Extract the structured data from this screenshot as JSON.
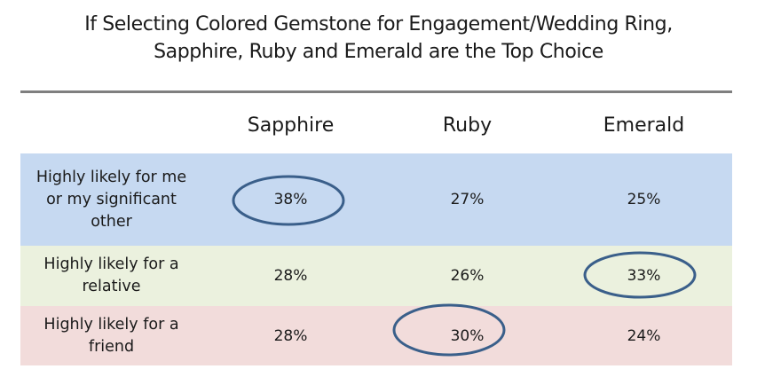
{
  "title_line1": "If Selecting Colored Gemstone for Engagement/Wedding Ring,",
  "title_line2": "Sapphire, Ruby and Emerald are the Top Choice",
  "colors": {
    "row0": "#c6d9f1",
    "row1": "#ebf1de",
    "row2": "#f2dcdb",
    "highlight": "#3a5f8a"
  },
  "chart_data": {
    "type": "table",
    "title": "If Selecting Colored Gemstone for Engagement/Wedding Ring, Sapphire, Ruby and Emerald are the Top Choice",
    "columns": [
      "Sapphire",
      "Ruby",
      "Emerald"
    ],
    "rows": [
      {
        "label": "Highly likely for me or my significant other",
        "values": [
          "38%",
          "27%",
          "25%"
        ],
        "highlight": 0
      },
      {
        "label": "Highly likely for a relative",
        "values": [
          "28%",
          "26%",
          "33%"
        ],
        "highlight": 2
      },
      {
        "label": "Highly likely for a friend",
        "values": [
          "28%",
          "30%",
          "24%"
        ],
        "highlight": 1
      }
    ]
  }
}
